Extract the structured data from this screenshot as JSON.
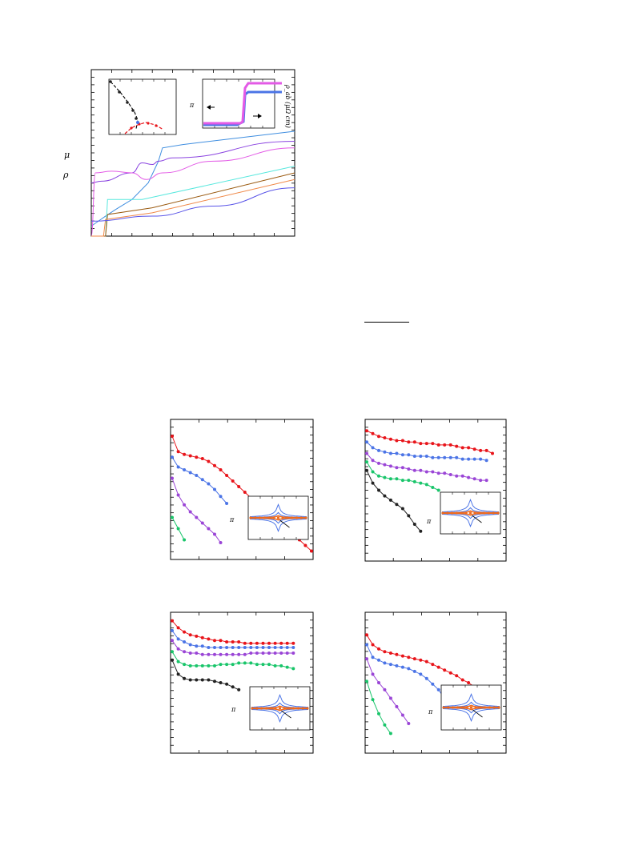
{
  "page": {
    "symbols": {
      "rho": "ρ",
      "mu": "μ",
      "inset_ylabel": "ρ_ab (μΩ cm)",
      "pi": "π"
    }
  },
  "colors": {
    "red": "#e8141a",
    "blue": "#4b74e6",
    "purple": "#9a45d6",
    "green": "#19c56a",
    "black": "#222222",
    "magenta": "#e35ae6",
    "cyan": "#58e8de",
    "brown": "#9a5a10",
    "orange": "#f08a4a",
    "indigo": "#5a55e8",
    "olive": "#6e7a1a",
    "sky": "#3f8ee0",
    "violet": "#8a43e0",
    "orange_mark": "#ee6a1e"
  },
  "chart_data": [
    {
      "type": "line",
      "panel": "top",
      "series": [
        {
          "color": "sky",
          "shape": "step-rise",
          "x": [
            0,
            0.07,
            0.12,
            0.2,
            0.28,
            0.33,
            0.35,
            0.45,
            1.0
          ],
          "y": [
            0.06,
            0.12,
            0.16,
            0.22,
            0.32,
            0.45,
            0.53,
            0.55,
            0.63
          ]
        },
        {
          "color": "violet",
          "shape": "plateau-bump",
          "x": [
            0.0,
            0.05,
            0.2,
            0.25,
            0.3,
            0.33,
            0.4,
            1.0
          ],
          "y": [
            0.32,
            0.33,
            0.38,
            0.44,
            0.43,
            0.45,
            0.47,
            0.57
          ]
        },
        {
          "color": "magenta",
          "shape": "dip-rise",
          "x": [
            0.0,
            0.02,
            0.1,
            0.2,
            0.27,
            0.35,
            0.6,
            1.0
          ],
          "y": [
            0.0,
            0.38,
            0.39,
            0.38,
            0.34,
            0.38,
            0.45,
            0.53
          ]
        },
        {
          "color": "cyan",
          "shape": "step",
          "x": [
            0.0,
            0.07,
            0.08,
            0.25,
            1.0
          ],
          "y": [
            0.0,
            0.0,
            0.22,
            0.22,
            0.42
          ]
        },
        {
          "color": "brown",
          "shape": "step",
          "x": [
            0.0,
            0.07,
            0.08,
            0.3,
            1.0
          ],
          "y": [
            0.0,
            0.0,
            0.13,
            0.17,
            0.38
          ]
        },
        {
          "color": "orange",
          "shape": "step",
          "x": [
            0.0,
            0.06,
            0.07,
            0.3,
            1.0
          ],
          "y": [
            0.0,
            0.0,
            0.1,
            0.14,
            0.34
          ]
        },
        {
          "color": "indigo",
          "shape": "curve",
          "x": [
            0.0,
            0.3,
            0.6,
            1.0
          ],
          "y": [
            0.09,
            0.12,
            0.18,
            0.29
          ]
        }
      ]
    },
    {
      "type": "line",
      "panel": "upper-left",
      "series": [
        {
          "color": "red",
          "y": [
            0.88,
            0.77,
            0.75,
            0.74,
            0.73,
            0.72,
            0.7,
            0.67,
            0.64,
            0.6,
            0.56,
            0.52,
            0.48,
            0.44,
            0.4,
            0.36,
            0.32,
            0.28,
            0.25,
            0.22,
            0.18,
            0.14,
            0.1,
            0.06
          ]
        },
        {
          "color": "blue",
          "y": [
            0.73,
            0.66,
            0.64,
            0.62,
            0.6,
            0.57,
            0.54,
            0.5,
            0.45,
            0.4
          ]
        },
        {
          "color": "purple",
          "y": [
            0.58,
            0.46,
            0.39,
            0.34,
            0.3,
            0.26,
            0.22,
            0.18,
            0.12
          ]
        },
        {
          "color": "green",
          "y": [
            0.3,
            0.22,
            0.14
          ]
        }
      ]
    },
    {
      "type": "line",
      "panel": "upper-right",
      "series": [
        {
          "color": "red",
          "y": [
            0.92,
            0.9,
            0.88,
            0.87,
            0.86,
            0.85,
            0.85,
            0.84,
            0.84,
            0.83,
            0.83,
            0.83,
            0.82,
            0.82,
            0.82,
            0.81,
            0.8,
            0.8,
            0.79,
            0.78,
            0.78,
            0.76
          ]
        },
        {
          "color": "blue",
          "y": [
            0.84,
            0.8,
            0.78,
            0.77,
            0.76,
            0.76,
            0.75,
            0.75,
            0.74,
            0.74,
            0.74,
            0.73,
            0.73,
            0.73,
            0.73,
            0.73,
            0.72,
            0.72,
            0.72,
            0.72,
            0.71
          ]
        },
        {
          "color": "purple",
          "y": [
            0.76,
            0.71,
            0.69,
            0.68,
            0.67,
            0.66,
            0.66,
            0.65,
            0.64,
            0.64,
            0.63,
            0.63,
            0.62,
            0.62,
            0.61,
            0.6,
            0.6,
            0.59,
            0.58,
            0.57,
            0.57
          ]
        },
        {
          "color": "green",
          "y": [
            0.7,
            0.63,
            0.6,
            0.59,
            0.58,
            0.58,
            0.57,
            0.57,
            0.56,
            0.55,
            0.54,
            0.52,
            0.5
          ]
        },
        {
          "color": "black",
          "y": [
            0.64,
            0.55,
            0.5,
            0.46,
            0.43,
            0.4,
            0.37,
            0.32,
            0.26,
            0.21
          ]
        }
      ]
    },
    {
      "type": "line",
      "panel": "lower-left",
      "series": [
        {
          "color": "red",
          "y": [
            0.94,
            0.89,
            0.86,
            0.84,
            0.83,
            0.82,
            0.81,
            0.8,
            0.8,
            0.79,
            0.79,
            0.79,
            0.78,
            0.78,
            0.78,
            0.78,
            0.78,
            0.78,
            0.78,
            0.78,
            0.78
          ]
        },
        {
          "color": "blue",
          "y": [
            0.87,
            0.81,
            0.79,
            0.77,
            0.76,
            0.76,
            0.75,
            0.75,
            0.75,
            0.75,
            0.75,
            0.75,
            0.75,
            0.75,
            0.75,
            0.75,
            0.75,
            0.75,
            0.75,
            0.75,
            0.75
          ]
        },
        {
          "color": "purple",
          "y": [
            0.8,
            0.74,
            0.72,
            0.71,
            0.71,
            0.7,
            0.7,
            0.7,
            0.7,
            0.7,
            0.7,
            0.7,
            0.7,
            0.71,
            0.71,
            0.71,
            0.71,
            0.71,
            0.71,
            0.71,
            0.71
          ]
        },
        {
          "color": "green",
          "y": [
            0.72,
            0.65,
            0.63,
            0.62,
            0.62,
            0.62,
            0.62,
            0.62,
            0.63,
            0.63,
            0.63,
            0.64,
            0.64,
            0.64,
            0.63,
            0.63,
            0.63,
            0.62,
            0.62,
            0.61,
            0.6
          ]
        },
        {
          "color": "black",
          "y": [
            0.66,
            0.56,
            0.53,
            0.52,
            0.52,
            0.52,
            0.52,
            0.51,
            0.5,
            0.49,
            0.47,
            0.45
          ]
        }
      ]
    },
    {
      "type": "line",
      "panel": "lower-right",
      "series": [
        {
          "color": "red",
          "y": [
            0.84,
            0.77,
            0.74,
            0.72,
            0.71,
            0.7,
            0.69,
            0.68,
            0.67,
            0.66,
            0.65,
            0.63,
            0.61,
            0.59,
            0.57,
            0.55,
            0.52,
            0.5,
            0.47,
            0.44,
            0.38,
            0.37
          ]
        },
        {
          "color": "blue",
          "y": [
            0.77,
            0.68,
            0.66,
            0.64,
            0.63,
            0.62,
            0.61,
            0.6,
            0.58,
            0.56,
            0.53,
            0.49,
            0.45,
            0.39
          ]
        },
        {
          "color": "purple",
          "y": [
            0.67,
            0.56,
            0.5,
            0.45,
            0.39,
            0.33,
            0.27,
            0.21
          ]
        },
        {
          "color": "green",
          "y": [
            0.51,
            0.38,
            0.28,
            0.2,
            0.14
          ]
        }
      ]
    }
  ]
}
